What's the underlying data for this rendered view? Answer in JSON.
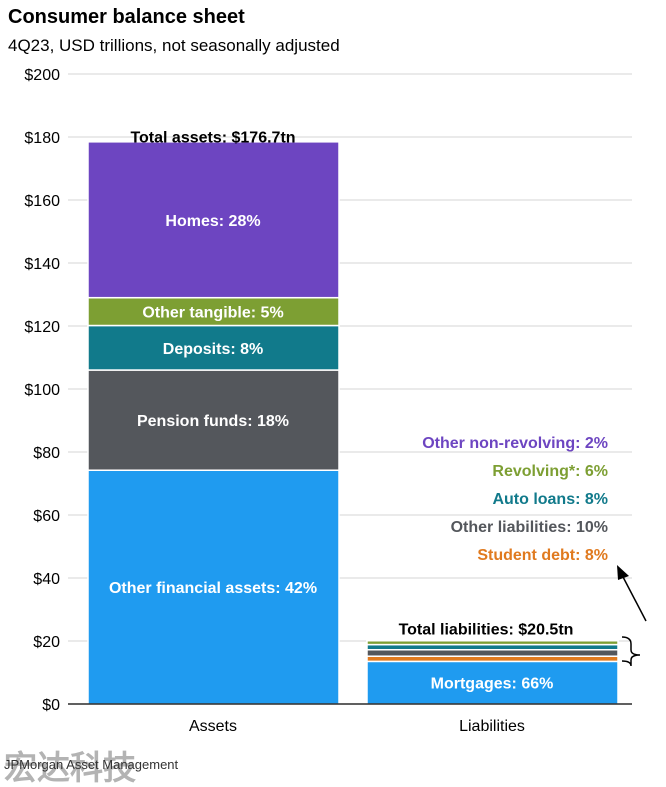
{
  "title": "Consumer balance sheet",
  "subtitle": "4Q23, USD trillions, not seasonally adjusted",
  "source": "JPMorgan Asset Management",
  "watermark_text": "宏达科技",
  "chart_data": {
    "type": "bar",
    "stacked": true,
    "title": "Consumer balance sheet",
    "subtitle": "4Q23, USD trillions, not seasonally adjusted",
    "ylim": [
      0,
      200
    ],
    "yticks": [
      0,
      20,
      40,
      60,
      80,
      100,
      120,
      140,
      160,
      180,
      200
    ],
    "ytick_labels": [
      "$0",
      "$20",
      "$40",
      "$60",
      "$80",
      "$100",
      "$120",
      "$140",
      "$160",
      "$180",
      "$200"
    ],
    "grid": true,
    "categories": [
      "Assets",
      "Liabilities"
    ],
    "bars": [
      {
        "category": "Assets",
        "total": 176.7,
        "total_label": "Total assets: $176.7tn",
        "segments": [
          {
            "name": "Other financial assets",
            "share": 0.42,
            "label": "Other financial assets: 42%",
            "color": "#1f9bf0"
          },
          {
            "name": "Pension funds",
            "share": 0.18,
            "label": "Pension funds: 18%",
            "color": "#54575c"
          },
          {
            "name": "Deposits",
            "share": 0.08,
            "label": "Deposits: 8%",
            "color": "#117a8b"
          },
          {
            "name": "Other tangible",
            "share": 0.05,
            "label": "Other tangible: 5%",
            "color": "#7d9f33"
          },
          {
            "name": "Homes",
            "share": 0.28,
            "label": "Homes: 28%",
            "color": "#6d45c1"
          }
        ]
      },
      {
        "category": "Liabilities",
        "total": 20.5,
        "total_label": "Total liabilities: $20.5tn",
        "segments": [
          {
            "name": "Mortgages",
            "share": 0.66,
            "label": "Mortgages: 66%",
            "color": "#1f9bf0"
          },
          {
            "name": "Student debt",
            "share": 0.08,
            "label": "Student debt: 8%",
            "color": "#e07a1f"
          },
          {
            "name": "Other liabilities",
            "share": 0.1,
            "label": "Other liabilities: 10%",
            "color": "#54575c"
          },
          {
            "name": "Auto loans",
            "share": 0.08,
            "label": "Auto loans: 8%",
            "color": "#117a8b"
          },
          {
            "name": "Revolving*",
            "share": 0.06,
            "label": "Revolving*: 6%",
            "color": "#7d9f33"
          },
          {
            "name": "Other non-revolving",
            "share": 0.02,
            "label": "Other non-revolving: 2%",
            "color": "#6d45c1"
          }
        ]
      }
    ]
  }
}
